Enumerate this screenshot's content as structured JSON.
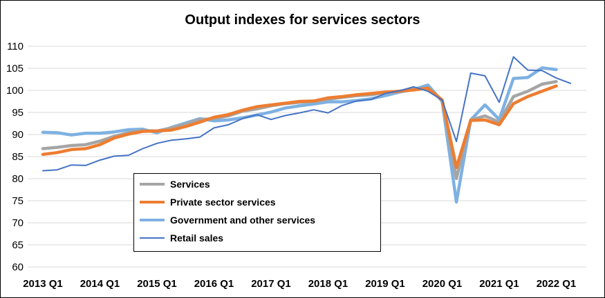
{
  "chart_data": {
    "type": "line",
    "title": "Output indexes for services sectors",
    "xlabel": "",
    "ylabel": "",
    "ylim": [
      60,
      110
    ],
    "yticks": [
      "60",
      "65",
      "70",
      "75",
      "80",
      "85",
      "90",
      "95",
      "100",
      "105",
      "110"
    ],
    "x": [
      "2013 Q1",
      "2013 Q2",
      "2013 Q3",
      "2013 Q4",
      "2014 Q1",
      "2014 Q2",
      "2014 Q3",
      "2014 Q4",
      "2015 Q1",
      "2015 Q2",
      "2015 Q3",
      "2015 Q4",
      "2016 Q1",
      "2016 Q2",
      "2016 Q3",
      "2016 Q4",
      "2017 Q1",
      "2017 Q2",
      "2017 Q3",
      "2017 Q4",
      "2018 Q1",
      "2018 Q2",
      "2018 Q3",
      "2018 Q4",
      "2019 Q1",
      "2019 Q2",
      "2019 Q3",
      "2019 Q4",
      "2020 Q1",
      "2020 Q2",
      "2020 Q3",
      "2020 Q4",
      "2021 Q1",
      "2021 Q2",
      "2021 Q3",
      "2021 Q4",
      "2022 Q1",
      "2022 Q2"
    ],
    "xtick_labels": [
      "2013 Q1",
      "2014 Q1",
      "2015 Q1",
      "2016 Q1",
      "2017 Q1",
      "2018 Q1",
      "2019 Q1",
      "2020 Q1",
      "2021 Q1",
      "2022 Q1"
    ],
    "grid": true,
    "legend_position": "lower-left, inside plot",
    "series": [
      {
        "name": "Services",
        "color": "#A5A5A5",
        "values": [
          86.8,
          87.1,
          87.5,
          87.7,
          88.5,
          89.6,
          90.4,
          90.9,
          90.8,
          91.5,
          92.3,
          93.4,
          93.6,
          94.2,
          95.3,
          95.8,
          96.5,
          97.0,
          97.3,
          97.5,
          98.0,
          98.4,
          98.8,
          99.0,
          99.5,
          99.8,
          100.3,
          100.4,
          97.8,
          80.0,
          93.3,
          94.2,
          92.8,
          98.6,
          99.8,
          101.4,
          102.0,
          null
        ]
      },
      {
        "name": "Private sector services",
        "color": "#ED7D31",
        "values": [
          85.5,
          85.9,
          86.6,
          86.8,
          87.7,
          89.2,
          90.1,
          90.7,
          90.8,
          91.0,
          91.8,
          92.8,
          93.9,
          94.5,
          95.5,
          96.3,
          96.7,
          97.1,
          97.5,
          97.6,
          98.3,
          98.6,
          99.0,
          99.3,
          99.6,
          99.8,
          100.1,
          100.5,
          97.8,
          82.5,
          93.2,
          93.3,
          92.2,
          97.0,
          98.6,
          99.8,
          101.0,
          null
        ]
      },
      {
        "name": "Government and other services",
        "color": "#7EB1E2",
        "values": [
          90.5,
          90.4,
          89.9,
          90.3,
          90.3,
          90.6,
          91.1,
          91.2,
          90.4,
          91.6,
          92.6,
          93.6,
          93.1,
          93.3,
          93.8,
          94.4,
          95.1,
          96.0,
          96.5,
          96.9,
          97.4,
          97.4,
          97.7,
          98.1,
          98.8,
          99.6,
          100.2,
          101.2,
          97.5,
          74.7,
          93.3,
          96.7,
          93.4,
          102.7,
          102.9,
          105.1,
          104.7,
          null
        ]
      },
      {
        "name": "Retail sales",
        "color": "#4472C4",
        "values": [
          81.8,
          82.0,
          83.1,
          83.0,
          84.2,
          85.1,
          85.3,
          86.8,
          88.0,
          88.7,
          89.0,
          89.4,
          91.5,
          92.2,
          93.6,
          94.5,
          93.4,
          94.3,
          94.9,
          95.6,
          94.9,
          96.6,
          97.6,
          97.9,
          99.3,
          99.9,
          100.8,
          99.8,
          97.8,
          88.4,
          103.9,
          103.3,
          97.3,
          107.6,
          104.6,
          104.5,
          102.8,
          101.6
        ]
      }
    ]
  }
}
